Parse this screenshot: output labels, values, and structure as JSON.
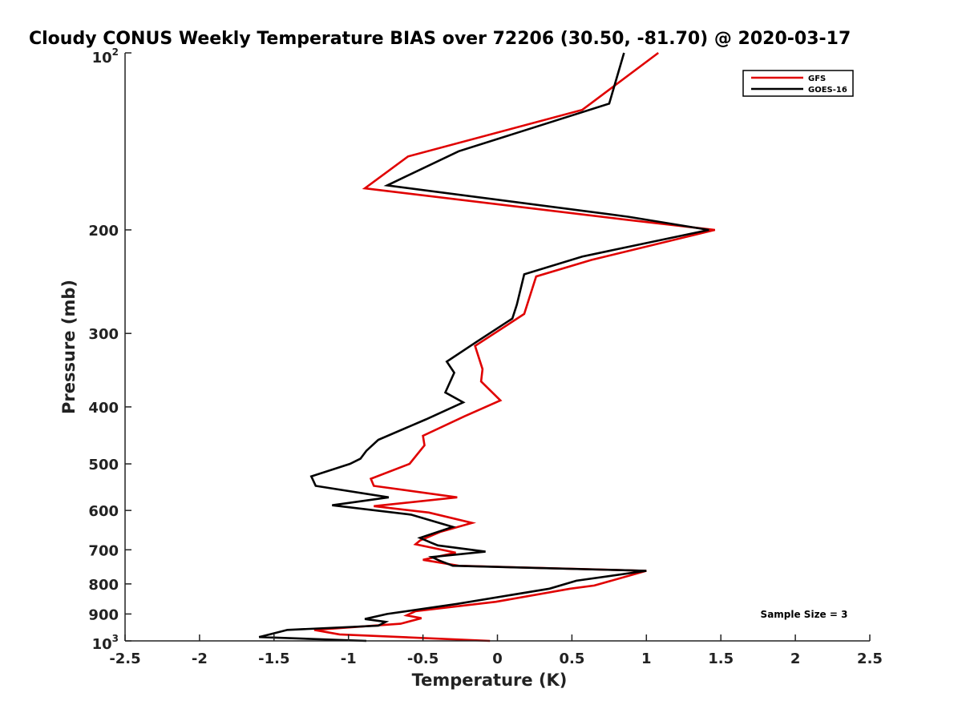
{
  "chart_data": {
    "type": "line",
    "title": "Cloudy CONUS Weekly Temperature BIAS over 72206 (30.50, -81.70) @ 2020-03-17",
    "xlabel": "Temperature (K)",
    "ylabel": "Pressure (mb)",
    "xlim": [
      -2.5,
      2.5
    ],
    "ylim": [
      1000,
      100
    ],
    "yscale": "log",
    "x_ticks": [
      -2.5,
      -2,
      -1.5,
      -1,
      -0.5,
      0,
      0.5,
      1,
      1.5,
      2,
      2.5
    ],
    "x_tick_labels": [
      "-2.5",
      "-2",
      "-1.5",
      "-1",
      "-0.5",
      "0",
      "0.5",
      "1",
      "1.5",
      "2",
      "2.5"
    ],
    "y_ticks": [
      200,
      300,
      400,
      500,
      600,
      700,
      800,
      900
    ],
    "y_tick_labels": [
      "200",
      "300",
      "400",
      "500",
      "600",
      "700",
      "800",
      "900"
    ],
    "y_top_label": {
      "base": "10",
      "exp": "2"
    },
    "y_bottom_label": {
      "base": "10",
      "exp": "3"
    },
    "legend_position": "top-right",
    "annotation": "Sample Size = 3",
    "series": [
      {
        "name": "GFS",
        "color": "#e00000",
        "points": [
          [
            1.08,
            100
          ],
          [
            0.57,
            125
          ],
          [
            -0.6,
            150
          ],
          [
            -0.89,
            170
          ],
          [
            0.85,
            192
          ],
          [
            1.46,
            200
          ],
          [
            0.63,
            225
          ],
          [
            0.26,
            240
          ],
          [
            0.18,
            278
          ],
          [
            -0.15,
            315
          ],
          [
            -0.1,
            345
          ],
          [
            -0.11,
            362
          ],
          [
            0.02,
            390
          ],
          [
            -0.22,
            415
          ],
          [
            -0.5,
            448
          ],
          [
            -0.49,
            465
          ],
          [
            -0.59,
            500
          ],
          [
            -0.85,
            530
          ],
          [
            -0.83,
            545
          ],
          [
            -0.27,
            570
          ],
          [
            -0.83,
            590
          ],
          [
            -0.46,
            605
          ],
          [
            -0.17,
            630
          ],
          [
            -0.38,
            652
          ],
          [
            -0.52,
            675
          ],
          [
            -0.55,
            685
          ],
          [
            -0.28,
            708
          ],
          [
            -0.5,
            728
          ],
          [
            -0.26,
            745
          ],
          [
            1.0,
            760
          ],
          [
            0.65,
            805
          ],
          [
            0.49,
            815
          ],
          [
            -0.01,
            858
          ],
          [
            -0.55,
            890
          ],
          [
            -0.61,
            905
          ],
          [
            -0.51,
            915
          ],
          [
            -0.65,
            935
          ],
          [
            -1.23,
            958
          ],
          [
            -1.06,
            975
          ],
          [
            -0.05,
            1000
          ]
        ]
      },
      {
        "name": "GOES-16",
        "color": "#000000",
        "points": [
          [
            0.85,
            100
          ],
          [
            0.75,
            122
          ],
          [
            -0.26,
            147
          ],
          [
            -0.74,
            168
          ],
          [
            0.88,
            190
          ],
          [
            1.42,
            200
          ],
          [
            0.57,
            222
          ],
          [
            0.18,
            238
          ],
          [
            0.13,
            268
          ],
          [
            0.1,
            283
          ],
          [
            -0.14,
            310
          ],
          [
            -0.34,
            335
          ],
          [
            -0.29,
            350
          ],
          [
            -0.35,
            378
          ],
          [
            -0.23,
            393
          ],
          [
            -0.48,
            420
          ],
          [
            -0.8,
            455
          ],
          [
            -0.88,
            475
          ],
          [
            -0.92,
            490
          ],
          [
            -0.99,
            500
          ],
          [
            -1.25,
            525
          ],
          [
            -1.22,
            545
          ],
          [
            -0.73,
            570
          ],
          [
            -1.11,
            588
          ],
          [
            -0.58,
            610
          ],
          [
            -0.3,
            640
          ],
          [
            -0.52,
            668
          ],
          [
            -0.45,
            680
          ],
          [
            -0.4,
            688
          ],
          [
            -0.08,
            705
          ],
          [
            -0.44,
            720
          ],
          [
            -0.39,
            730
          ],
          [
            -0.3,
            745
          ],
          [
            1.0,
            760
          ],
          [
            0.53,
            790
          ],
          [
            0.35,
            815
          ],
          [
            -0.27,
            865
          ],
          [
            -0.74,
            900
          ],
          [
            -0.89,
            918
          ],
          [
            -0.75,
            928
          ],
          [
            -0.8,
            942
          ],
          [
            -1.41,
            958
          ],
          [
            -1.6,
            985
          ],
          [
            -0.88,
            1000
          ]
        ]
      }
    ]
  }
}
